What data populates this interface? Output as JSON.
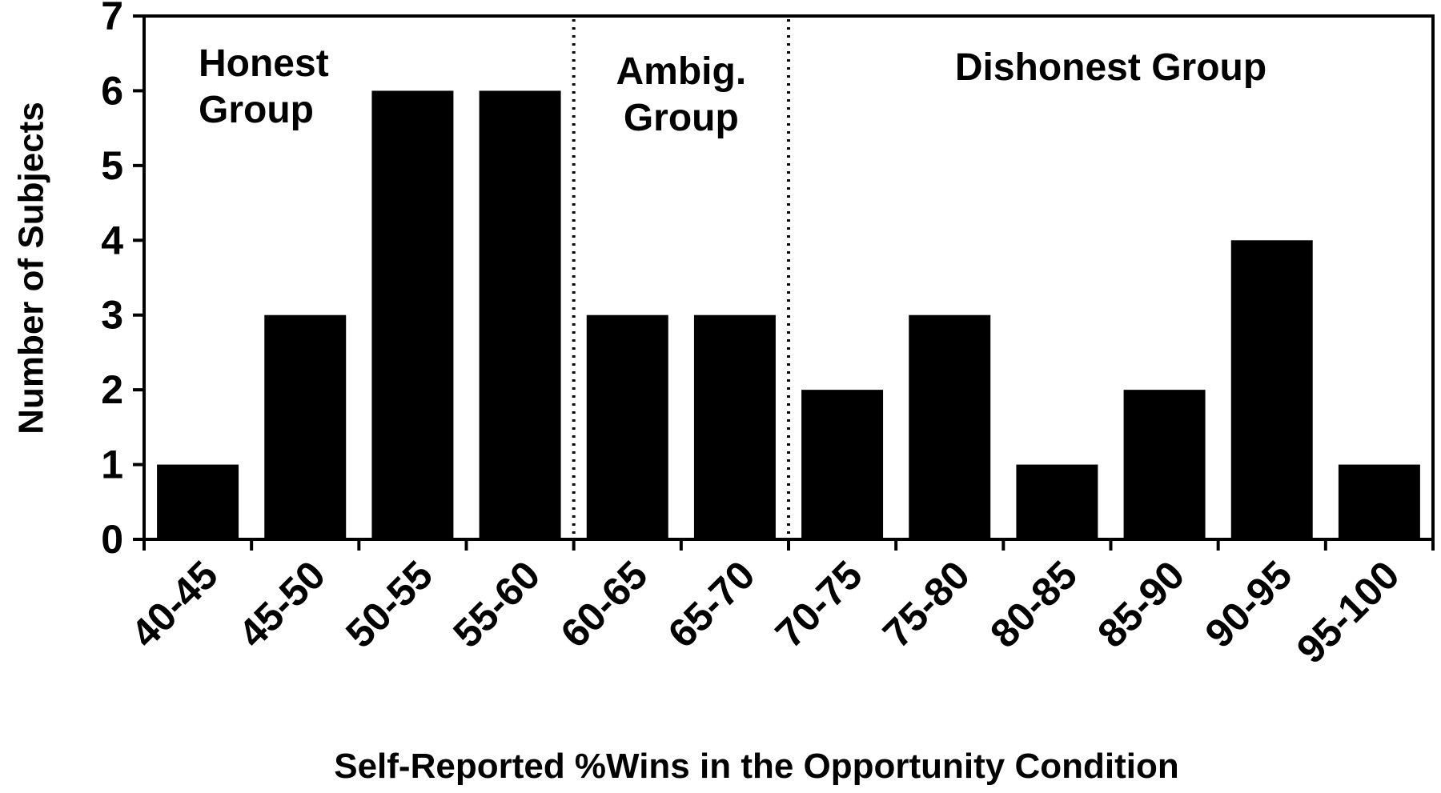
{
  "chart_data": {
    "type": "bar",
    "categories": [
      "40-45",
      "45-50",
      "50-55",
      "55-60",
      "60-65",
      "65-70",
      "70-75",
      "75-80",
      "80-85",
      "85-90",
      "90-95",
      "95-100"
    ],
    "values": [
      1,
      3,
      6,
      6,
      3,
      3,
      2,
      3,
      1,
      2,
      4,
      1
    ],
    "title": "",
    "xlabel": "Self-Reported %Wins in the Opportunity Condition",
    "ylabel": "Number of Subjects",
    "ylim": [
      0,
      7
    ],
    "yticks": [
      0,
      1,
      2,
      3,
      4,
      5,
      6,
      7
    ],
    "bar_color": "#000000",
    "grid": false,
    "legend": "none",
    "dividers_after_category": [
      "55-60",
      "65-70"
    ],
    "annotations": [
      {
        "lines": [
          "Honest",
          "Group"
        ],
        "region": "honest"
      },
      {
        "lines": [
          "Ambig.",
          "Group"
        ],
        "region": "ambiguous"
      },
      {
        "lines": [
          "Dishonest Group"
        ],
        "region": "dishonest"
      }
    ]
  }
}
